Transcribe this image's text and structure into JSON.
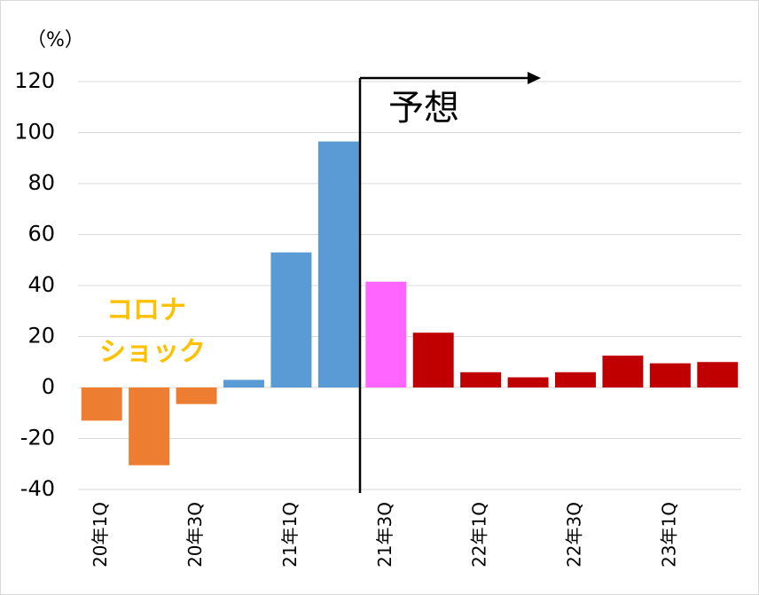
{
  "chart_data": {
    "type": "bar",
    "y_unit": "（%）",
    "categories": [
      "20年1Q",
      null,
      "20年3Q",
      null,
      "21年1Q",
      null,
      "21年3Q",
      null,
      "22年1Q",
      null,
      "22年3Q",
      null,
      "23年1Q",
      null
    ],
    "values": [
      -13,
      -30.5,
      -6.5,
      3,
      53,
      96.5,
      41.5,
      21.5,
      6,
      4,
      6,
      12.5,
      9.5,
      10
    ],
    "colors": [
      "#ed7d31",
      "#ed7d31",
      "#ed7d31",
      "#5b9bd5",
      "#5b9bd5",
      "#5b9bd5",
      "#ff66ff",
      "#c00000",
      "#c00000",
      "#c00000",
      "#c00000",
      "#c00000",
      "#c00000",
      "#c00000"
    ],
    "ylim": [
      -40,
      120
    ],
    "yticks": [
      -40,
      -20,
      0,
      20,
      40,
      60,
      80,
      100,
      120
    ],
    "grid": true,
    "forecast_label": "予想",
    "annotation": [
      "コロナ",
      "ショック"
    ],
    "annotation_color": "#ffc000"
  }
}
